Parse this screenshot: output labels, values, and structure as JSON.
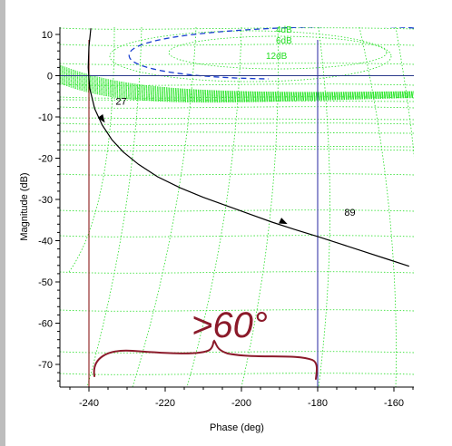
{
  "chart_data": {
    "type": "line",
    "title": "",
    "xlabel": "Phase (deg)",
    "ylabel": "Magnitude (dB)",
    "xlim": [
      -245,
      -155
    ],
    "ylim": [
      -75,
      12
    ],
    "x_ticks": [
      -240,
      -220,
      -200,
      -180,
      -160
    ],
    "y_ticks": [
      10,
      0,
      -10,
      -20,
      -30,
      -40,
      -50,
      -60,
      -70
    ],
    "grid": "nichols-chart-grid",
    "series": [
      {
        "color": "#000000",
        "x": [
          -239.5,
          -240.0,
          -240.2,
          -239.8,
          -238.5,
          -236.5,
          -234,
          -231,
          -227,
          -222,
          -216,
          -210,
          -204,
          -198,
          -192,
          -186,
          -180,
          -174,
          -168,
          -162,
          -156
        ],
        "y": [
          11.5,
          7,
          2,
          -3,
          -8,
          -12,
          -15.5,
          -18.5,
          -21.5,
          -24.5,
          -27.2,
          -29.5,
          -31.5,
          -33.5,
          -35.5,
          -37.3,
          -39,
          -40.8,
          -42.6,
          -44.4,
          -46.2
        ]
      }
    ],
    "curve_labels": [
      {
        "text": "27",
        "x": -233,
        "y": -7
      },
      {
        "text": "89",
        "x": -173,
        "y": -34
      }
    ],
    "arrows": [
      {
        "x": -236.5,
        "y": -10.5
      },
      {
        "x": -189,
        "y": -35.5
      }
    ],
    "contour_labels": [
      "4dB",
      "6dB",
      "12dB"
    ],
    "reference_lines": [
      {
        "orientation": "vertical",
        "x": -180,
        "color": "#3a3aa8"
      },
      {
        "orientation": "vertical",
        "x": -240,
        "color": "#8b1a1a"
      },
      {
        "orientation": "horizontal",
        "y": 0,
        "color": "#2a3a8a"
      }
    ],
    "annotation": {
      "text": ">60°",
      "color": "#8b1a2a",
      "style": "handwritten-brace"
    }
  }
}
